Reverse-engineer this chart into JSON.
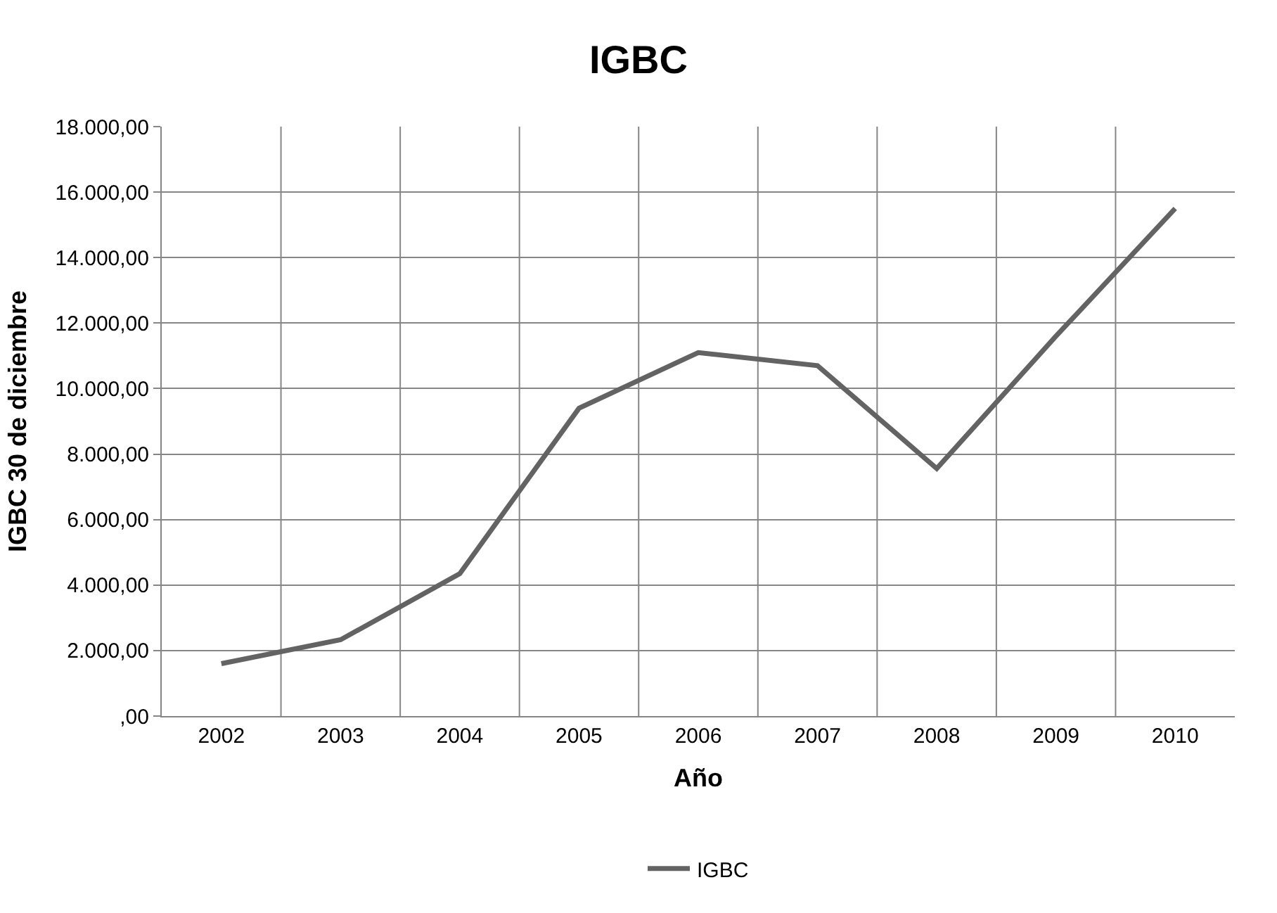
{
  "chart_data": {
    "type": "line",
    "title": "IGBC",
    "xlabel": "Año",
    "ylabel": "IGBC 30 de diciembre",
    "categories": [
      "2002",
      "2003",
      "2004",
      "2005",
      "2006",
      "2007",
      "2008",
      "2009",
      "2010"
    ],
    "series": [
      {
        "name": "IGBC",
        "color": "#636363",
        "values": [
          1600,
          2330,
          4350,
          9400,
          11100,
          10700,
          7560,
          11600,
          15500
        ]
      }
    ],
    "ylim": [
      0,
      18000
    ],
    "yticks": [
      {
        "value": 0,
        "label": ",00"
      },
      {
        "value": 2000,
        "label": "2.000,00"
      },
      {
        "value": 4000,
        "label": "4.000,00"
      },
      {
        "value": 6000,
        "label": "6.000,00"
      },
      {
        "value": 8000,
        "label": "8.000,00"
      },
      {
        "value": 10000,
        "label": "10.000,00"
      },
      {
        "value": 12000,
        "label": "12.000,00"
      },
      {
        "value": 14000,
        "label": "14.000,00"
      },
      {
        "value": 16000,
        "label": "16.000,00"
      },
      {
        "value": 18000,
        "label": "18.000,00"
      }
    ],
    "grid": true,
    "legend": "bottom",
    "marker": "none",
    "line_style": "solid"
  }
}
